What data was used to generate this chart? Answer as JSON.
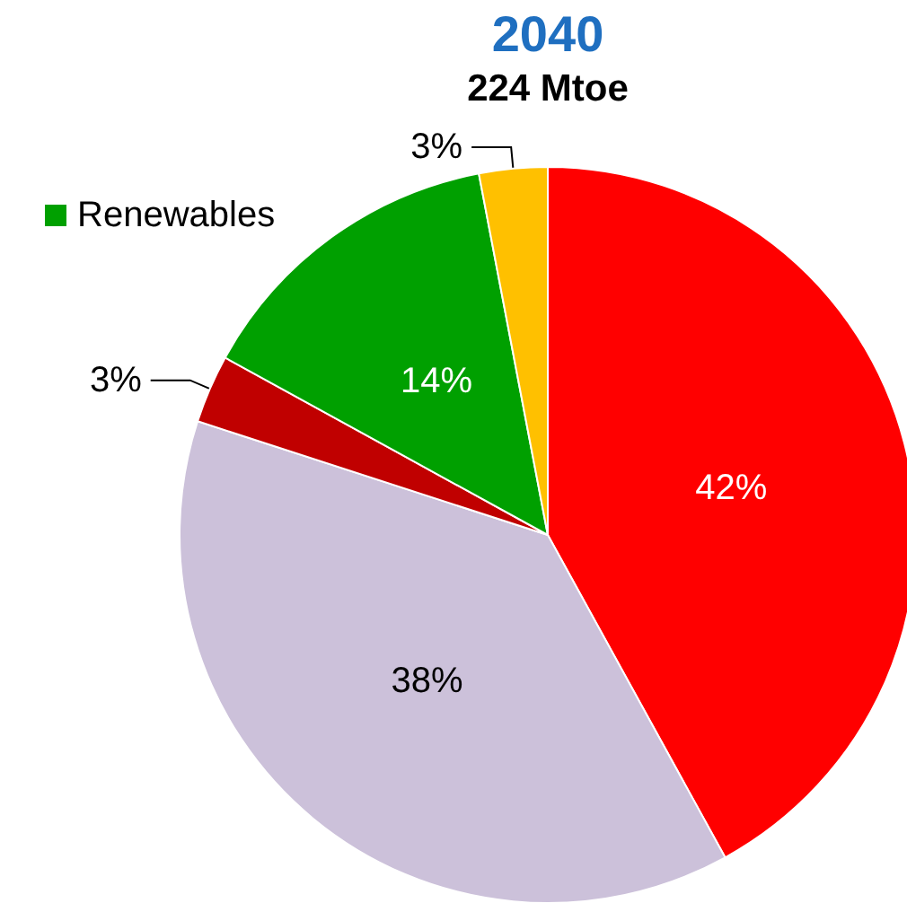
{
  "chart_data": {
    "type": "pie",
    "title": "2040",
    "subtitle": "224 Mtoe",
    "categories": [
      null,
      null,
      null,
      "Renewables",
      null
    ],
    "values": [
      42,
      38,
      3,
      14,
      3
    ],
    "value_labels": [
      "42%",
      "38%",
      "3%",
      "14%",
      "3%"
    ],
    "colors": [
      "#ff0000",
      "#ccc1da",
      "#c00000",
      "#00a000",
      "#ffc000"
    ],
    "legend": "top left"
  }
}
